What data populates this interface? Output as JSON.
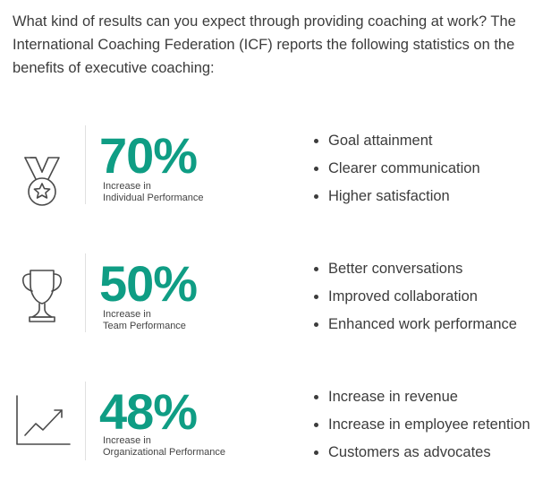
{
  "intro": "What kind of results can you expect through providing coaching at work? The International Coaching Federation (ICF) reports the following statistics on the benefits of executive coaching:",
  "stats": [
    {
      "icon": "medal-icon",
      "value": "70%",
      "label_line1": "Increase in",
      "label_line2": "Individual Performance",
      "bullets": [
        "Goal attainment",
        "Clearer communication",
        "Higher satisfaction"
      ]
    },
    {
      "icon": "trophy-icon",
      "value": "50%",
      "label_line1": "Increase in",
      "label_line2": "Team Performance",
      "bullets": [
        "Better conversations",
        "Improved collaboration",
        "Enhanced work performance"
      ]
    },
    {
      "icon": "growth-chart-icon",
      "value": "48%",
      "label_line1": "Increase in",
      "label_line2": "Organizational Performance",
      "bullets": [
        "Increase in revenue",
        "Increase in employee retention",
        "Customers as advocates"
      ]
    }
  ],
  "colors": {
    "accent": "#0f9d84",
    "text": "#3c3c3c",
    "icon_stroke": "#4a4a4a"
  }
}
